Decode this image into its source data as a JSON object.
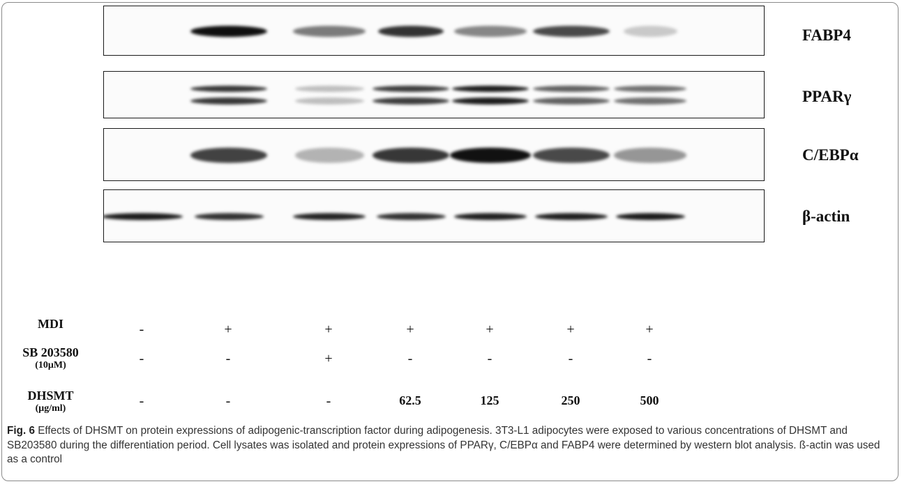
{
  "blots": [
    {
      "label": "FABP4",
      "bands": [
        {
          "lane": 2,
          "darkness": 0.98,
          "width": 1.0
        },
        {
          "lane": 3,
          "darkness": 0.5,
          "width": 0.95
        },
        {
          "lane": 4,
          "darkness": 0.82,
          "width": 0.85
        },
        {
          "lane": 5,
          "darkness": 0.45,
          "width": 0.95
        },
        {
          "lane": 6,
          "darkness": 0.72,
          "width": 1.0
        },
        {
          "lane": 7,
          "darkness": 0.15,
          "width": 0.7
        }
      ]
    },
    {
      "label": "PPARγ",
      "doublet": true,
      "bands": [
        {
          "lane": 2,
          "darkness": 0.8,
          "width": 1.0
        },
        {
          "lane": 3,
          "darkness": 0.2,
          "width": 0.9
        },
        {
          "lane": 4,
          "darkness": 0.78,
          "width": 1.0
        },
        {
          "lane": 5,
          "darkness": 0.92,
          "width": 1.0
        },
        {
          "lane": 6,
          "darkness": 0.62,
          "width": 1.0
        },
        {
          "lane": 7,
          "darkness": 0.55,
          "width": 0.95
        }
      ]
    },
    {
      "label": "C/EBPα",
      "bands": [
        {
          "lane": 2,
          "darkness": 0.75,
          "width": 1.0
        },
        {
          "lane": 3,
          "darkness": 0.25,
          "width": 0.9
        },
        {
          "lane": 4,
          "darkness": 0.8,
          "width": 1.0
        },
        {
          "lane": 5,
          "darkness": 0.97,
          "width": 1.05
        },
        {
          "lane": 6,
          "darkness": 0.72,
          "width": 1.0
        },
        {
          "lane": 7,
          "darkness": 0.38,
          "width": 0.95
        }
      ]
    },
    {
      "label": "β-actin",
      "bands": [
        {
          "lane": 1,
          "darkness": 0.92,
          "width": 1.05
        },
        {
          "lane": 2,
          "darkness": 0.82,
          "width": 0.9
        },
        {
          "lane": 3,
          "darkness": 0.88,
          "width": 0.95
        },
        {
          "lane": 4,
          "darkness": 0.82,
          "width": 0.9
        },
        {
          "lane": 5,
          "darkness": 0.9,
          "width": 0.95
        },
        {
          "lane": 6,
          "darkness": 0.9,
          "width": 0.95
        },
        {
          "lane": 7,
          "darkness": 0.92,
          "width": 0.9
        }
      ]
    }
  ],
  "conditions": [
    {
      "label_line1": "MDI",
      "label_line2": "",
      "values": [
        "-",
        "+",
        "+",
        "+",
        "+",
        "+",
        "+"
      ]
    },
    {
      "label_line1": "SB 203580",
      "label_line2": "(10μM)",
      "values": [
        "-",
        "-",
        "+",
        "-",
        "-",
        "-",
        "-"
      ]
    },
    {
      "label_line1": "DHSMT",
      "label_line2": "(μg/ml)",
      "values": [
        "-",
        "-",
        "-",
        "62.5",
        "125",
        "250",
        "500"
      ]
    }
  ],
  "caption": {
    "fig_label": "Fig. 6",
    "text": " Effects of DHSMT on protein expressions of adipogenic-transcription factor during adipogenesis. 3T3-L1 adipocytes were exposed to various concentrations of DHSMT and SB203580 during the differentiation period. Cell lysates was isolated and protein expressions of PPARγ, C/EBPα and FABP4 were determined by western blot analysis. ß-actin was used as a control"
  }
}
